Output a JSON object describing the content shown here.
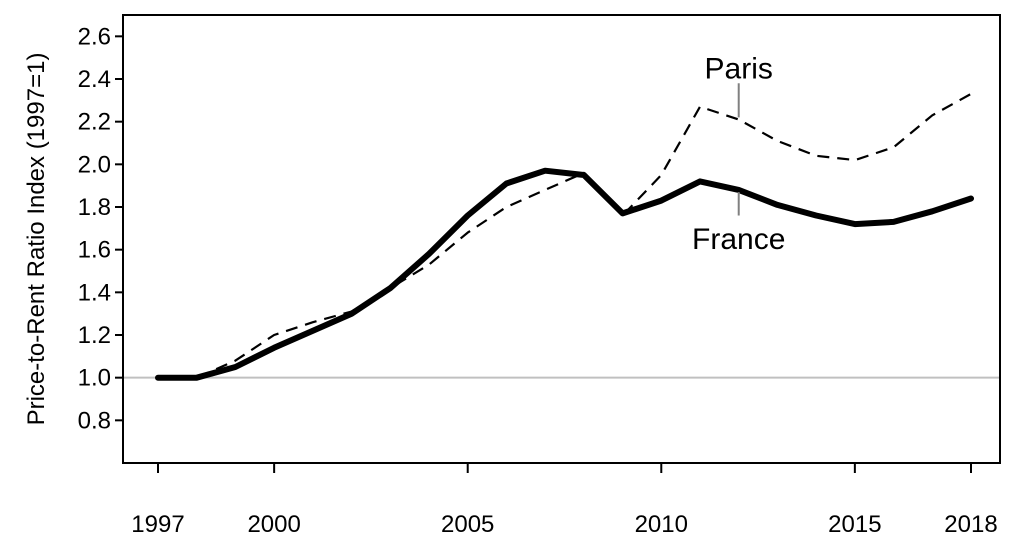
{
  "chart_data": {
    "type": "line",
    "title": "",
    "xlabel": "",
    "ylabel": "Price-to-Rent Ratio Index (1997=1)",
    "xlim": [
      1997,
      2018
    ],
    "ylim": [
      0.6,
      2.7
    ],
    "x_ticks": [
      "1997",
      "2000",
      "2005",
      "2010",
      "2015",
      "2018"
    ],
    "y_ticks": [
      "0.8",
      "1.0",
      "1.2",
      "1.4",
      "1.6",
      "1.8",
      "2.0",
      "2.2",
      "2.4",
      "2.6"
    ],
    "reference_line": {
      "y": 1.0,
      "color": "#c0c0c0"
    },
    "grid": false,
    "legend": "none",
    "series": [
      {
        "name": "Paris",
        "style": "dashed",
        "color": "#000000",
        "x": [
          1997,
          1998,
          1999,
          2000,
          2001,
          2002,
          2003,
          2004,
          2005,
          2006,
          2007,
          2008,
          2009,
          2010,
          2011,
          2012,
          2013,
          2014,
          2015,
          2016,
          2017,
          2018
        ],
        "values": [
          1.0,
          1.0,
          1.08,
          1.2,
          1.26,
          1.31,
          1.42,
          1.53,
          1.68,
          1.8,
          1.88,
          1.96,
          1.76,
          1.95,
          2.27,
          2.21,
          2.11,
          2.04,
          2.02,
          2.08,
          2.23,
          2.33
        ]
      },
      {
        "name": "France",
        "style": "solid",
        "color": "#000000",
        "x": [
          1997,
          1998,
          1999,
          2000,
          2001,
          2002,
          2003,
          2004,
          2005,
          2006,
          2007,
          2008,
          2009,
          2010,
          2011,
          2012,
          2013,
          2014,
          2015,
          2016,
          2017,
          2018
        ],
        "values": [
          1.0,
          1.0,
          1.05,
          1.14,
          1.22,
          1.3,
          1.42,
          1.58,
          1.76,
          1.91,
          1.97,
          1.95,
          1.77,
          1.83,
          1.92,
          1.88,
          1.81,
          1.76,
          1.72,
          1.73,
          1.78,
          1.84
        ]
      }
    ],
    "annotations": [
      {
        "text": "Paris",
        "series": "Paris",
        "x": 2012,
        "label_y": 2.45,
        "line_from": 2.38,
        "line_to": 2.22
      },
      {
        "text": "France",
        "series": "France",
        "x": 2012,
        "label_y": 1.65,
        "line_from": 1.87,
        "line_to": 1.76
      }
    ]
  }
}
